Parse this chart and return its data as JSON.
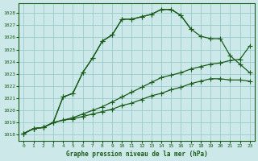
{
  "title": "Graphe pression niveau de la mer (hPa)",
  "background_color": "#cce8e8",
  "grid_color": "#99cccc",
  "line_color": "#1a5c1a",
  "ylim": [
    1017.5,
    1028.8
  ],
  "yticks": [
    1018,
    1019,
    1020,
    1021,
    1022,
    1023,
    1024,
    1025,
    1026,
    1027,
    1028
  ],
  "xlim": [
    -0.5,
    23.5
  ],
  "xticks": [
    0,
    1,
    2,
    3,
    4,
    5,
    6,
    7,
    8,
    9,
    10,
    11,
    12,
    13,
    14,
    15,
    16,
    17,
    18,
    19,
    20,
    21,
    22,
    23
  ],
  "series1": [
    1018.1,
    1018.5,
    1018.6,
    1019.0,
    1021.1,
    1021.4,
    1023.1,
    1024.3,
    1025.7,
    1026.2,
    1027.5,
    1027.5,
    1027.7,
    1027.9,
    1028.3,
    1028.3,
    1027.8,
    1026.7,
    null,
    null,
    null,
    null,
    null,
    null
  ],
  "series2": [
    1018.1,
    1018.5,
    1018.6,
    1019.0,
    1021.1,
    1021.4,
    1023.1,
    1024.3,
    1025.7,
    1026.2,
    1027.5,
    1027.5,
    1027.7,
    1027.9,
    1028.3,
    1028.3,
    1027.8,
    1026.7,
    1026.1,
    1025.9,
    1025.9,
    1024.5,
    1023.8,
    1023.1
  ],
  "series3": [
    1018.1,
    1018.5,
    1018.6,
    1019.0,
    1019.2,
    1019.4,
    1019.7,
    1020.0,
    1020.3,
    1020.7,
    1021.1,
    1021.5,
    1021.9,
    1022.3,
    1022.7,
    1022.9,
    1023.1,
    1023.4,
    1023.6,
    1023.8,
    1023.9,
    1024.1,
    1024.2,
    1025.3
  ],
  "series4": [
    1018.1,
    1018.5,
    1018.6,
    1019.0,
    1019.2,
    1019.3,
    1019.5,
    1019.7,
    1019.9,
    1020.1,
    1020.4,
    1020.6,
    1020.9,
    1021.2,
    1021.4,
    1021.7,
    1021.9,
    1022.2,
    1022.4,
    1022.6,
    1022.6,
    1022.5,
    1022.5,
    1022.4
  ]
}
